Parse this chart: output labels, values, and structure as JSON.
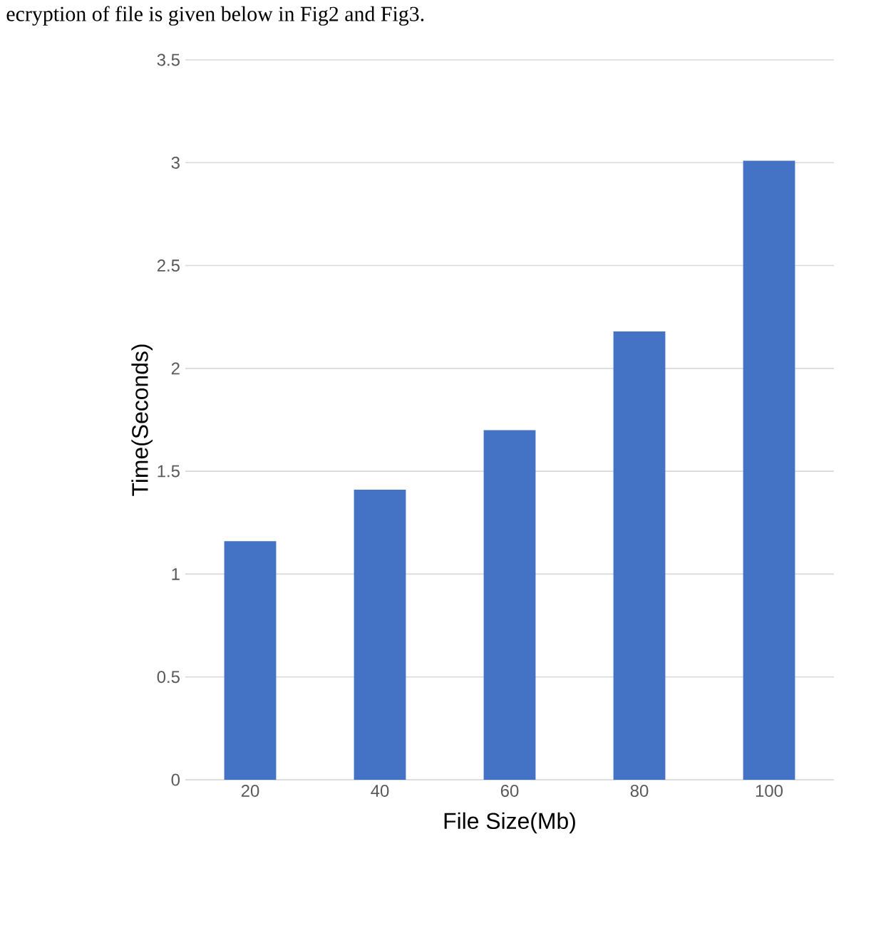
{
  "chart_data": {
    "type": "bar",
    "xlabel": "File Size(Mb)",
    "ylabel": "Time(Seconds)",
    "annotations": [
      "ecryption of file is given below in Fig2 and Fig3."
    ],
    "categories": [
      "20",
      "40",
      "60",
      "80",
      "100"
    ],
    "values": [
      1.16,
      1.41,
      1.7,
      2.18,
      3.01
    ],
    "color": "#4472c4",
    "ylim": [
      0,
      3.5
    ],
    "yticks": [
      0,
      0.5,
      1,
      1.5,
      2,
      2.5,
      3,
      3.5
    ],
    "grid": "y"
  }
}
